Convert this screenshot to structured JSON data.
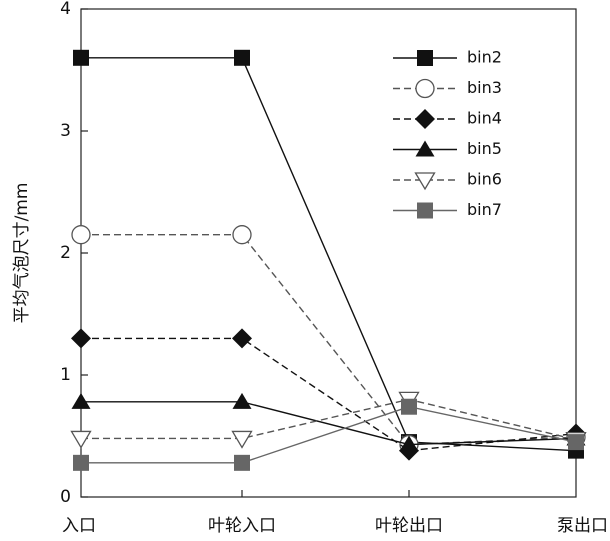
{
  "chart_data": {
    "type": "line",
    "title": "",
    "xlabel": "",
    "ylabel": "平均气泡尺寸/mm",
    "categories": [
      "入口",
      "叶轮入口",
      "叶轮出口",
      "泵出口"
    ],
    "ylim": [
      0,
      4
    ],
    "yticks": [
      "0",
      "1",
      "2",
      "3",
      "4"
    ],
    "grid": false,
    "legend_position": "top-right",
    "series": [
      {
        "name": "bin2",
        "values": [
          3.6,
          3.6,
          0.45,
          0.38
        ],
        "color": "#111111",
        "dash": "solid",
        "marker": "square-filled"
      },
      {
        "name": "bin3",
        "values": [
          2.15,
          2.15,
          0.43,
          0.49
        ],
        "color": "#555555",
        "dash": "dashed",
        "marker": "circle-open"
      },
      {
        "name": "bin4",
        "values": [
          1.3,
          1.3,
          0.38,
          0.52
        ],
        "color": "#111111",
        "dash": "dashed",
        "marker": "diamond-filled"
      },
      {
        "name": "bin5",
        "values": [
          0.78,
          0.78,
          0.43,
          0.48
        ],
        "color": "#111111",
        "dash": "solid",
        "marker": "triangle-filled"
      },
      {
        "name": "bin6",
        "values": [
          0.48,
          0.48,
          0.8,
          0.47
        ],
        "color": "#555555",
        "dash": "dashed",
        "marker": "triangle-down-open"
      },
      {
        "name": "bin7",
        "values": [
          0.28,
          0.28,
          0.74,
          0.45
        ],
        "color": "#666666",
        "dash": "solid",
        "marker": "square-gray"
      }
    ]
  }
}
